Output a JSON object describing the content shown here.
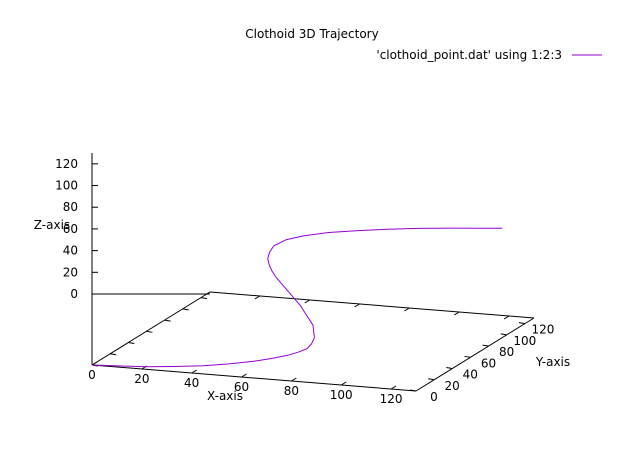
{
  "chart_data": {
    "type": "line",
    "projection": "3d",
    "title": "Clothoid 3D Trajectory",
    "xlabel": "X-axis",
    "ylabel": "Y-axis",
    "zlabel": "Z-axis",
    "xlim": [
      0,
      130
    ],
    "ylim": [
      0,
      130
    ],
    "zlim": [
      0,
      130
    ],
    "xticks": [
      "0",
      "20",
      "40",
      "60",
      "80",
      "100",
      "120"
    ],
    "yticks": [
      "0",
      "20",
      "40",
      "60",
      "80",
      "100",
      "120"
    ],
    "zticks": [
      "0",
      "20",
      "40",
      "60",
      "80",
      "100",
      "120"
    ],
    "grid": false,
    "legend_position": "top-right",
    "series": [
      {
        "name": "'clothoid_point.dat' using 1:2:3",
        "color": "#9400d3",
        "points": [
          [
            0,
            0,
            0
          ],
          [
            10,
            2,
            0
          ],
          [
            20,
            4,
            0
          ],
          [
            30,
            8,
            0
          ],
          [
            40,
            13,
            0
          ],
          [
            48,
            19,
            0
          ],
          [
            55,
            26,
            0
          ],
          [
            60,
            33,
            0
          ],
          [
            64,
            40,
            0
          ],
          [
            66,
            47,
            0
          ],
          [
            67,
            53,
            0
          ],
          [
            67,
            58,
            2
          ],
          [
            67,
            61,
            6
          ],
          [
            66,
            63,
            10
          ],
          [
            65,
            65,
            15
          ],
          [
            63,
            66,
            20
          ],
          [
            61,
            67,
            25
          ],
          [
            59,
            68,
            30
          ],
          [
            57,
            68,
            35
          ],
          [
            55,
            68,
            40
          ],
          [
            53,
            68,
            45
          ],
          [
            51,
            68,
            50
          ],
          [
            49,
            68,
            55
          ],
          [
            47,
            69,
            60
          ],
          [
            46,
            69,
            65
          ],
          [
            45,
            70,
            70
          ],
          [
            45,
            72,
            75
          ],
          [
            46,
            74,
            80
          ],
          [
            50,
            77,
            85
          ],
          [
            56,
            80,
            88
          ],
          [
            64,
            85,
            90
          ],
          [
            74,
            90,
            91
          ],
          [
            84,
            96,
            91
          ],
          [
            94,
            101,
            91
          ],
          [
            104,
            107,
            90
          ],
          [
            113,
            112,
            89
          ],
          [
            122,
            117,
            88
          ]
        ]
      }
    ]
  }
}
